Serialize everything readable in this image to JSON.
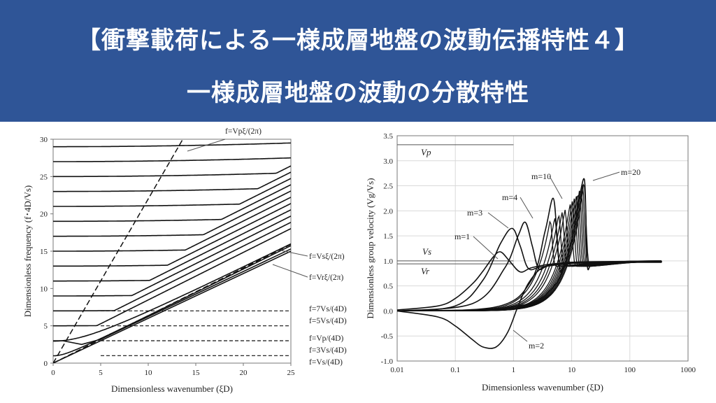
{
  "header": {
    "line1": "【衝撃載荷による一様成層地盤の波動伝播特性４】",
    "line2": "一様成層地盤の波動の分散特性"
  },
  "colors": {
    "banner": "#2f5597",
    "title_text": "#ffffff",
    "curve": "#111111"
  },
  "chart_data": [
    {
      "type": "line",
      "xlabel": "Dimensionless  wavenumber (ξD)",
      "ylabel": "Dimensionless  frequency (f･4D/Vs)",
      "xlim": [
        0,
        25
      ],
      "ylim": [
        0,
        30
      ],
      "xticks": [
        0,
        5,
        10,
        15,
        20,
        25
      ],
      "yticks": [
        0,
        5,
        10,
        15,
        20,
        25,
        30
      ],
      "grid": false,
      "mode_start_values": [
        1,
        3,
        5,
        7,
        9,
        11,
        13,
        15,
        17,
        19,
        21,
        23,
        25,
        27,
        29
      ],
      "dashed_frequency_levels": [
        1,
        3,
        5,
        7
      ],
      "dashed_level_extent_x": [
        5,
        25
      ],
      "line_slopes": {
        "Vp": 2.2,
        "Vs": 0.637,
        "Vr": 0.6
      },
      "annotations": [
        {
          "text": "f=Vpξ/(2π)"
        },
        {
          "text": "f=Vsξ/(2π)"
        },
        {
          "text": "f=Vrξ/(2π)"
        },
        {
          "text": "f=7Vs/(4D)"
        },
        {
          "text": "f=5Vs/(4D)"
        },
        {
          "text": "f=Vp/(4D)"
        },
        {
          "text": "f=3Vs/(4D)"
        },
        {
          "text": "f=Vs/(4D)"
        }
      ]
    },
    {
      "type": "line",
      "xlabel": "Dimensionless  wavenumber (ξD)",
      "ylabel": "Dimensionless  group velocity (Vg/Vs)",
      "xscale": "log",
      "xlim": [
        0.01,
        1000
      ],
      "ylim": [
        -1.0,
        3.5
      ],
      "xticks": [
        "0.01",
        "0.1",
        "1",
        "10",
        "100",
        "1000"
      ],
      "yticks": [
        "-1.0",
        "-0.5",
        "0.0",
        "0.5",
        "1.0",
        "1.5",
        "2.0",
        "2.5",
        "3.0",
        "3.5"
      ],
      "grid": true,
      "reference_lines": [
        {
          "label": "Vp",
          "value": 3.32,
          "x_range": [
            0.01,
            1
          ]
        },
        {
          "label": "Vs",
          "value": 1.0,
          "x_range": [
            0.01,
            1
          ]
        },
        {
          "label": "Vr",
          "value": 0.94,
          "x_range": [
            0.01,
            1
          ]
        }
      ],
      "series": [
        {
          "name": "m=1",
          "x": [
            0.01,
            0.05,
            0.1,
            0.2,
            0.3,
            0.45,
            0.6,
            0.85,
            1.3,
            2,
            4,
            10,
            100,
            350
          ],
          "y": [
            0.02,
            0.1,
            0.25,
            0.55,
            0.8,
            1.08,
            1.18,
            1.0,
            0.78,
            0.86,
            0.93,
            0.96,
            0.97,
            0.97
          ]
        },
        {
          "name": "m=2",
          "x": [
            0.01,
            0.05,
            0.1,
            0.2,
            0.3,
            0.5,
            0.8,
            1.2,
            1.8,
            3,
            6,
            15,
            100,
            350
          ],
          "y": [
            0.0,
            -0.12,
            -0.3,
            -0.58,
            -0.72,
            -0.72,
            -0.42,
            0.1,
            0.55,
            0.85,
            0.95,
            0.98,
            0.99,
            1.0
          ]
        },
        {
          "name": "m=3",
          "x": [
            0.01,
            0.1,
            0.3,
            0.6,
            0.95,
            1.3,
            1.8,
            3,
            10,
            100,
            350
          ],
          "y": [
            0.0,
            0.1,
            0.62,
            1.35,
            1.65,
            1.3,
            0.85,
            0.88,
            0.95,
            0.98,
            0.98
          ]
        },
        {
          "name": "m=4",
          "x": [
            0.01,
            0.2,
            0.7,
            1.2,
            1.6,
            2.1,
            2.7,
            4,
            12,
            100,
            350
          ],
          "y": [
            0.0,
            0.15,
            0.85,
            1.5,
            1.77,
            1.3,
            0.85,
            0.9,
            0.96,
            0.99,
            0.99
          ]
        },
        {
          "name": "m=10",
          "x": [
            0.01,
            0.5,
            2,
            3.5,
            4.8,
            5.6,
            6.3,
            7.8,
            15,
            100,
            350
          ],
          "y": [
            0.0,
            0.08,
            0.6,
            1.6,
            2.25,
            1.5,
            0.8,
            0.92,
            0.96,
            0.99,
            1.0
          ]
        },
        {
          "name": "m=20",
          "x": [
            0.01,
            1,
            5,
            10,
            14,
            16.5,
            17.5,
            18.6,
            22,
            40,
            100,
            350
          ],
          "y": [
            0.0,
            0.08,
            0.5,
            1.4,
            2.35,
            2.63,
            2.0,
            0.9,
            0.92,
            0.96,
            0.99,
            1.0
          ]
        }
      ],
      "labels": [
        {
          "text": "m=1"
        },
        {
          "text": "m=2"
        },
        {
          "text": "m=3"
        },
        {
          "text": "m=4"
        },
        {
          "text": "m=10"
        },
        {
          "text": "m=20"
        }
      ]
    }
  ]
}
